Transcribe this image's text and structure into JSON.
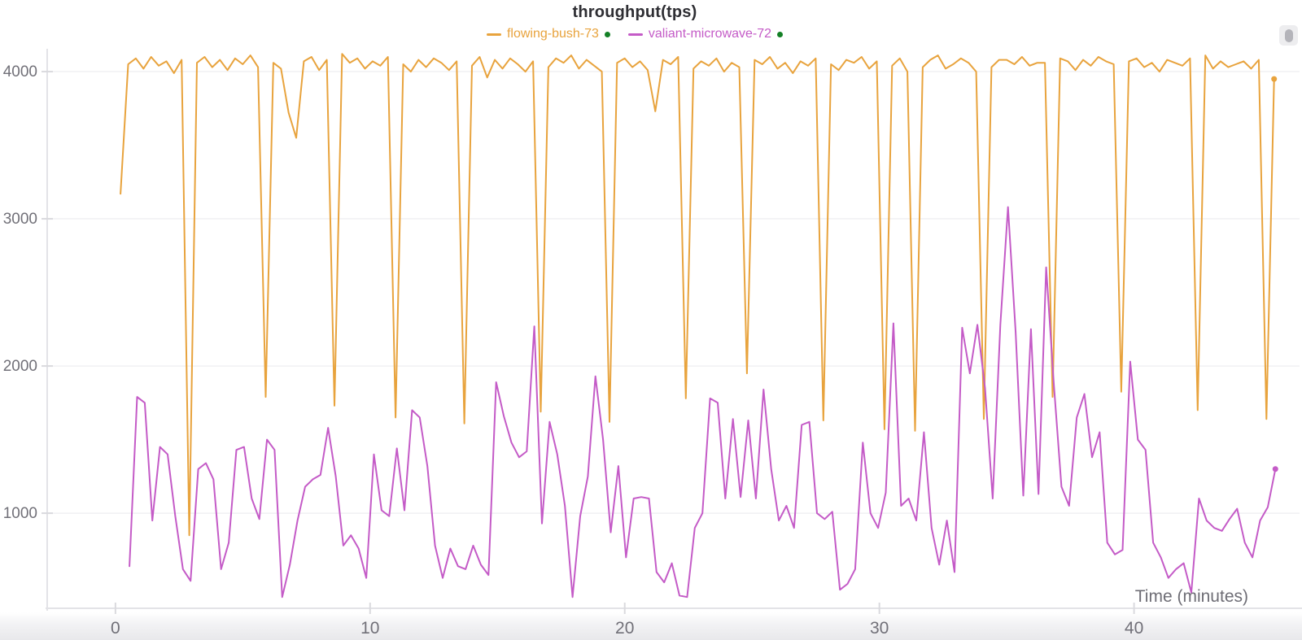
{
  "header": {
    "title": "throughput(tps)"
  },
  "controls": {
    "panel_handle": "drag-handle"
  },
  "chart_data": {
    "type": "line",
    "title": "throughput(tps)",
    "xlabel": "Time (minutes)",
    "ylabel": "",
    "x_ticks": [
      0,
      10,
      20,
      30,
      40
    ],
    "y_ticks": [
      1000,
      2000,
      3000,
      4000
    ],
    "xlim": [
      -2.68,
      46.5
    ],
    "ylim": [
      354,
      4155
    ],
    "grid": "horizontal-only",
    "legend_position": "top-center",
    "axis_color": "#e3e3e7",
    "grid_color": "#f0f0f3",
    "tick_label_color": "#717078",
    "series": [
      {
        "name": "flowing-bush-73",
        "color": "#E8A33D",
        "status_dot_color": "#148026",
        "end_marker": true,
        "x": [
          0.2,
          0.5,
          0.8,
          1.1,
          1.4,
          1.7,
          2.0,
          2.3,
          2.6,
          2.9,
          3.2,
          3.5,
          3.8,
          4.1,
          4.4,
          4.7,
          5.0,
          5.3,
          5.6,
          5.9,
          6.2,
          6.5,
          6.8,
          7.1,
          7.4,
          7.7,
          8.0,
          8.3,
          8.6,
          8.9,
          9.2,
          9.5,
          9.8,
          10.1,
          10.4,
          10.7,
          11.0,
          11.3,
          11.6,
          11.9,
          12.2,
          12.5,
          12.8,
          13.1,
          13.4,
          13.7,
          14.0,
          14.3,
          14.6,
          14.9,
          15.2,
          15.5,
          15.8,
          16.1,
          16.4,
          16.7,
          17.0,
          17.3,
          17.6,
          17.9,
          18.2,
          18.5,
          18.8,
          19.1,
          19.4,
          19.7,
          20.0,
          20.3,
          20.6,
          20.9,
          21.2,
          21.5,
          21.8,
          22.1,
          22.4,
          22.7,
          23.0,
          23.3,
          23.6,
          23.9,
          24.2,
          24.5,
          24.8,
          25.1,
          25.4,
          25.7,
          26.0,
          26.3,
          26.6,
          26.9,
          27.2,
          27.5,
          27.8,
          28.1,
          28.4,
          28.7,
          29.0,
          29.3,
          29.6,
          29.9,
          30.2,
          30.5,
          30.8,
          31.1,
          31.4,
          31.7,
          32.0,
          32.3,
          32.6,
          32.9,
          33.2,
          33.5,
          33.8,
          34.1,
          34.4,
          34.7,
          35.0,
          35.3,
          35.6,
          35.9,
          36.2,
          36.5,
          36.8,
          37.1,
          37.4,
          37.7,
          38.0,
          38.3,
          38.6,
          38.9,
          39.2,
          39.5,
          39.8,
          40.1,
          40.4,
          40.7,
          41.0,
          41.3,
          41.6,
          41.9,
          42.2,
          42.5,
          42.8,
          43.1,
          43.4,
          43.7,
          44.0,
          44.3,
          44.6,
          44.9,
          45.2,
          45.5
        ],
        "y": [
          3170,
          4050,
          4090,
          4020,
          4100,
          4040,
          4070,
          3990,
          4080,
          850,
          4060,
          4100,
          4030,
          4080,
          4010,
          4090,
          4050,
          4110,
          4030,
          1790,
          4060,
          4020,
          3720,
          3550,
          4070,
          4100,
          4010,
          4080,
          1730,
          4120,
          4060,
          4090,
          4020,
          4070,
          4040,
          4100,
          1650,
          4050,
          4000,
          4080,
          4030,
          4090,
          4060,
          4010,
          4070,
          1610,
          4040,
          4100,
          3960,
          4080,
          4020,
          4090,
          4050,
          4000,
          4070,
          1690,
          4030,
          4090,
          4060,
          4110,
          4020,
          4080,
          4040,
          4000,
          1620,
          4060,
          4090,
          4030,
          4070,
          4010,
          3730,
          4080,
          4050,
          4100,
          1780,
          4020,
          4070,
          4040,
          4090,
          4000,
          4060,
          4030,
          1950,
          4080,
          4050,
          4100,
          4020,
          4060,
          3990,
          4070,
          4040,
          4090,
          1630,
          4050,
          4010,
          4080,
          4060,
          4100,
          4020,
          4070,
          1570,
          4040,
          4090,
          4000,
          1560,
          4030,
          4080,
          4110,
          4020,
          4050,
          4090,
          4060,
          4000,
          1640,
          4030,
          4080,
          4080,
          4050,
          4100,
          4040,
          4060,
          4060,
          1790,
          4090,
          4070,
          4010,
          4080,
          4040,
          4100,
          4070,
          4050,
          1825,
          4070,
          4090,
          4030,
          4060,
          4000,
          4080,
          4060,
          4040,
          4090,
          1700,
          4110,
          4020,
          4070,
          4030,
          4050,
          4070,
          4020,
          4080,
          1640,
          3950
        ]
      },
      {
        "name": "valiant-microwave-72",
        "color": "#C45BC7",
        "status_dot_color": "#148026",
        "end_marker": true,
        "x": [
          0.55,
          0.85,
          1.15,
          1.45,
          1.75,
          2.05,
          2.35,
          2.65,
          2.95,
          3.25,
          3.55,
          3.85,
          4.15,
          4.45,
          4.75,
          5.05,
          5.35,
          5.65,
          5.95,
          6.25,
          6.55,
          6.85,
          7.15,
          7.45,
          7.75,
          8.05,
          8.35,
          8.65,
          8.95,
          9.25,
          9.55,
          9.85,
          10.15,
          10.45,
          10.75,
          11.05,
          11.35,
          11.65,
          11.95,
          12.25,
          12.55,
          12.85,
          13.15,
          13.45,
          13.75,
          14.05,
          14.35,
          14.65,
          14.95,
          15.25,
          15.55,
          15.85,
          16.15,
          16.45,
          16.75,
          17.05,
          17.35,
          17.65,
          17.95,
          18.25,
          18.55,
          18.85,
          19.15,
          19.45,
          19.75,
          20.05,
          20.35,
          20.65,
          20.95,
          21.25,
          21.55,
          21.85,
          22.15,
          22.45,
          22.75,
          23.05,
          23.35,
          23.65,
          23.95,
          24.25,
          24.55,
          24.85,
          25.15,
          25.45,
          25.75,
          26.05,
          26.35,
          26.65,
          26.95,
          27.25,
          27.55,
          27.85,
          28.15,
          28.45,
          28.75,
          29.05,
          29.35,
          29.65,
          29.95,
          30.25,
          30.55,
          30.85,
          31.15,
          31.45,
          31.75,
          32.05,
          32.35,
          32.65,
          32.95,
          33.25,
          33.55,
          33.85,
          34.15,
          34.45,
          34.75,
          35.05,
          35.35,
          35.65,
          35.95,
          36.25,
          36.55,
          36.85,
          37.15,
          37.45,
          37.75,
          38.05,
          38.35,
          38.65,
          38.95,
          39.25,
          39.55,
          39.85,
          40.15,
          40.45,
          40.75,
          41.05,
          41.35,
          41.65,
          41.95,
          42.25,
          42.55,
          42.85,
          43.15,
          43.45,
          43.75,
          44.05,
          44.35,
          44.65,
          44.95,
          45.25,
          45.55
        ],
        "y": [
          640,
          1790,
          1750,
          950,
          1450,
          1400,
          980,
          620,
          540,
          1300,
          1340,
          1230,
          620,
          800,
          1430,
          1450,
          1100,
          960,
          1500,
          1430,
          430,
          650,
          950,
          1180,
          1230,
          1260,
          1580,
          1250,
          780,
          850,
          760,
          560,
          1400,
          1020,
          980,
          1440,
          1020,
          1700,
          1650,
          1320,
          780,
          560,
          760,
          640,
          620,
          780,
          650,
          580,
          1890,
          1660,
          1480,
          1380,
          1420,
          2270,
          930,
          1620,
          1400,
          1050,
          430,
          980,
          1250,
          1930,
          1500,
          870,
          1320,
          700,
          1100,
          1110,
          1100,
          600,
          530,
          660,
          440,
          430,
          900,
          1000,
          1780,
          1750,
          1100,
          1640,
          1110,
          1630,
          1100,
          1840,
          1300,
          950,
          1050,
          900,
          1600,
          1620,
          1000,
          960,
          1010,
          480,
          520,
          620,
          1480,
          1000,
          900,
          1140,
          2290,
          1050,
          1100,
          950,
          1550,
          900,
          650,
          950,
          600,
          2260,
          1950,
          2280,
          1850,
          1100,
          2280,
          3080,
          2230,
          1120,
          2250,
          1130,
          2670,
          1880,
          1180,
          1050,
          1650,
          1810,
          1380,
          1550,
          800,
          720,
          750,
          2030,
          1500,
          1430,
          800,
          700,
          560,
          620,
          660,
          460,
          1100,
          950,
          900,
          880,
          960,
          1030,
          800,
          700,
          950,
          1040,
          1300
        ]
      }
    ]
  }
}
